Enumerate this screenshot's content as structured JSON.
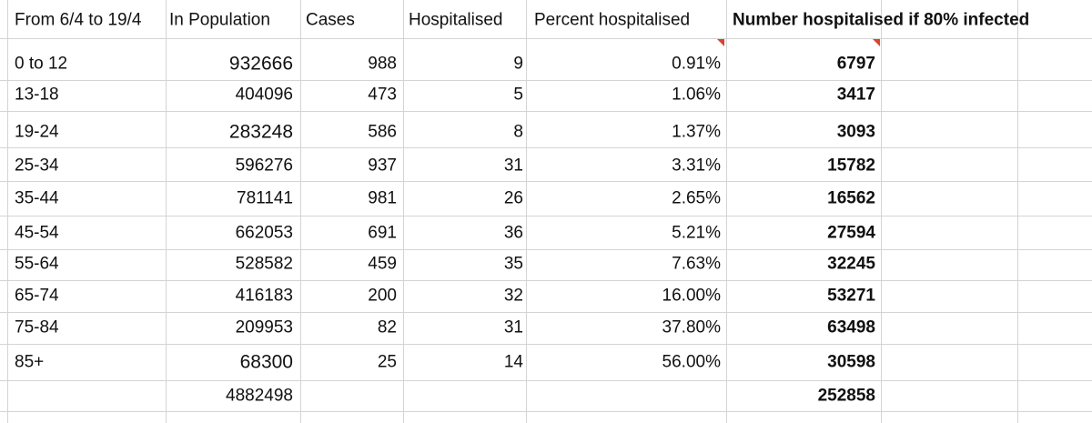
{
  "table": {
    "header": [
      "From 6/4 to 19/4",
      "In Population",
      "Cases",
      "Hospitalised",
      "Percent hospitalised",
      "Number hospitalised if 80% infected"
    ],
    "rows": [
      [
        "0 to 12",
        "932666",
        "988",
        "9",
        "0.91%",
        "6797"
      ],
      [
        "13-18",
        "404096",
        "473",
        "5",
        "1.06%",
        "3417"
      ],
      [
        "19-24",
        "283248",
        "586",
        "8",
        "1.37%",
        "3093"
      ],
      [
        "25-34",
        "596276",
        "937",
        "31",
        "3.31%",
        "15782"
      ],
      [
        "35-44",
        "781141",
        "981",
        "26",
        "2.65%",
        "16562"
      ],
      [
        "45-54",
        "662053",
        "691",
        "36",
        "5.21%",
        "27594"
      ],
      [
        "55-64",
        "528582",
        "459",
        "35",
        "7.63%",
        "32245"
      ],
      [
        "65-74",
        "416183",
        "200",
        "32",
        "16.00%",
        "53271"
      ],
      [
        "75-84",
        "209953",
        "82",
        "31",
        "37.80%",
        "63498"
      ],
      [
        "85+",
        "68300",
        "25",
        "14",
        "56.00%",
        "30598"
      ]
    ],
    "total": {
      "population": "4882498",
      "hospitalised_if_80": "252858"
    }
  }
}
